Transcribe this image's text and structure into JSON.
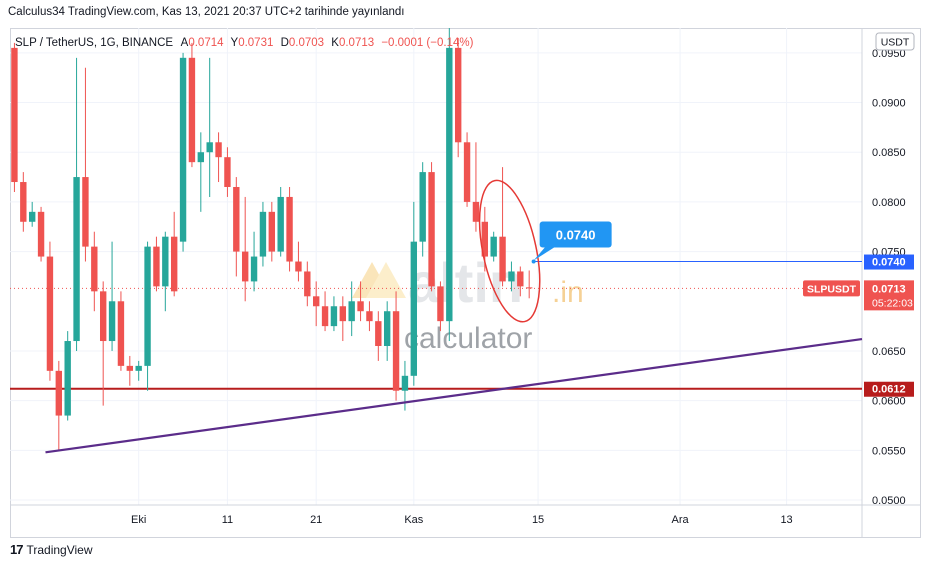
{
  "header": {
    "published": "Calculus34 TradingView.com, Kas 13, 2021 20:37 UTC+2 tarihinde yayınlandı"
  },
  "ohlc_bar": {
    "symbol": "SLP / TetherUS, 1G, BINANCE",
    "open_label": "A",
    "open": "0.0714",
    "high_label": "Y",
    "high": "0.0731",
    "low_label": "D",
    "low": "0.0703",
    "close_label": "K",
    "close": "0.0713",
    "change": "−0.0001 (−0.14%)"
  },
  "currency_button": "USDT",
  "watermark": {
    "brand": "altin",
    "suffix": ".in",
    "sub": "calculator"
  },
  "footer": {
    "logo": "17",
    "brand": "TradingView"
  },
  "colors": {
    "up": "#26a69a",
    "down": "#ef5350",
    "trendline": "#5b2c8a",
    "support": "#b71c1c",
    "target": "#2962ff",
    "callout": "#2196f3"
  },
  "chart_data": {
    "type": "candlestick",
    "symbol": "SLPUSDT",
    "ylim": [
      0.0495,
      0.0975
    ],
    "y_ticks": [
      "0.0950",
      "0.0900",
      "0.0850",
      "0.0800",
      "0.0750",
      "0.0650",
      "0.0600",
      "0.0550",
      "0.0500"
    ],
    "x_ticks": [
      {
        "label": "Eki",
        "day": 20
      },
      {
        "label": "11",
        "day": 30
      },
      {
        "label": "21",
        "day": 40
      },
      {
        "label": "Kas",
        "day": 51
      },
      {
        "label": "15",
        "day": 65
      },
      {
        "label": "Ara",
        "day": 81
      },
      {
        "label": "13",
        "day": 93
      }
    ],
    "x_range": [
      5.5,
      101.5
    ],
    "candles": [
      {
        "day": 6,
        "o": 0.0955,
        "h": 0.096,
        "l": 0.081,
        "c": 0.082
      },
      {
        "day": 7,
        "o": 0.082,
        "h": 0.083,
        "l": 0.077,
        "c": 0.078
      },
      {
        "day": 8,
        "o": 0.078,
        "h": 0.08,
        "l": 0.0775,
        "c": 0.079
      },
      {
        "day": 9,
        "o": 0.079,
        "h": 0.0795,
        "l": 0.074,
        "c": 0.0745
      },
      {
        "day": 10,
        "o": 0.0745,
        "h": 0.076,
        "l": 0.062,
        "c": 0.063
      },
      {
        "day": 11,
        "o": 0.063,
        "h": 0.064,
        "l": 0.055,
        "c": 0.0585
      },
      {
        "day": 12,
        "o": 0.0585,
        "h": 0.067,
        "l": 0.058,
        "c": 0.066
      },
      {
        "day": 13,
        "o": 0.066,
        "h": 0.0945,
        "l": 0.065,
        "c": 0.0825
      },
      {
        "day": 14,
        "o": 0.0825,
        "h": 0.0935,
        "l": 0.074,
        "c": 0.0755
      },
      {
        "day": 15,
        "o": 0.0755,
        "h": 0.077,
        "l": 0.069,
        "c": 0.071
      },
      {
        "day": 16,
        "o": 0.071,
        "h": 0.072,
        "l": 0.0595,
        "c": 0.066
      },
      {
        "day": 17,
        "o": 0.066,
        "h": 0.076,
        "l": 0.065,
        "c": 0.07
      },
      {
        "day": 18,
        "o": 0.07,
        "h": 0.071,
        "l": 0.063,
        "c": 0.0635
      },
      {
        "day": 19,
        "o": 0.0635,
        "h": 0.0645,
        "l": 0.0615,
        "c": 0.063
      },
      {
        "day": 20,
        "o": 0.063,
        "h": 0.064,
        "l": 0.062,
        "c": 0.0635
      },
      {
        "day": 21,
        "o": 0.0635,
        "h": 0.076,
        "l": 0.061,
        "c": 0.0755
      },
      {
        "day": 22,
        "o": 0.0755,
        "h": 0.0765,
        "l": 0.071,
        "c": 0.0715
      },
      {
        "day": 23,
        "o": 0.0715,
        "h": 0.077,
        "l": 0.069,
        "c": 0.0765
      },
      {
        "day": 24,
        "o": 0.0765,
        "h": 0.079,
        "l": 0.0705,
        "c": 0.071
      },
      {
        "day": 25,
        "o": 0.076,
        "h": 0.095,
        "l": 0.075,
        "c": 0.0945
      },
      {
        "day": 26,
        "o": 0.0945,
        "h": 0.096,
        "l": 0.0835,
        "c": 0.084
      },
      {
        "day": 27,
        "o": 0.084,
        "h": 0.087,
        "l": 0.079,
        "c": 0.085
      },
      {
        "day": 28,
        "o": 0.085,
        "h": 0.0945,
        "l": 0.0805,
        "c": 0.086
      },
      {
        "day": 29,
        "o": 0.086,
        "h": 0.087,
        "l": 0.082,
        "c": 0.0845
      },
      {
        "day": 30,
        "o": 0.0845,
        "h": 0.0855,
        "l": 0.0805,
        "c": 0.0815
      },
      {
        "day": 31,
        "o": 0.0815,
        "h": 0.0825,
        "l": 0.0725,
        "c": 0.075
      },
      {
        "day": 32,
        "o": 0.075,
        "h": 0.0805,
        "l": 0.07,
        "c": 0.072
      },
      {
        "day": 33,
        "o": 0.072,
        "h": 0.077,
        "l": 0.071,
        "c": 0.0745
      },
      {
        "day": 34,
        "o": 0.0745,
        "h": 0.08,
        "l": 0.0735,
        "c": 0.079
      },
      {
        "day": 35,
        "o": 0.079,
        "h": 0.08,
        "l": 0.074,
        "c": 0.075
      },
      {
        "day": 36,
        "o": 0.075,
        "h": 0.0815,
        "l": 0.0745,
        "c": 0.0805
      },
      {
        "day": 37,
        "o": 0.0805,
        "h": 0.0815,
        "l": 0.073,
        "c": 0.074
      },
      {
        "day": 38,
        "o": 0.074,
        "h": 0.076,
        "l": 0.072,
        "c": 0.073
      },
      {
        "day": 39,
        "o": 0.073,
        "h": 0.074,
        "l": 0.0695,
        "c": 0.0705
      },
      {
        "day": 40,
        "o": 0.0705,
        "h": 0.072,
        "l": 0.0675,
        "c": 0.0695
      },
      {
        "day": 41,
        "o": 0.0695,
        "h": 0.071,
        "l": 0.067,
        "c": 0.0675
      },
      {
        "day": 42,
        "o": 0.0675,
        "h": 0.0705,
        "l": 0.067,
        "c": 0.0695
      },
      {
        "day": 43,
        "o": 0.0695,
        "h": 0.0705,
        "l": 0.066,
        "c": 0.068
      },
      {
        "day": 44,
        "o": 0.068,
        "h": 0.072,
        "l": 0.0665,
        "c": 0.07
      },
      {
        "day": 45,
        "o": 0.07,
        "h": 0.072,
        "l": 0.068,
        "c": 0.069
      },
      {
        "day": 46,
        "o": 0.069,
        "h": 0.07,
        "l": 0.067,
        "c": 0.068
      },
      {
        "day": 47,
        "o": 0.068,
        "h": 0.069,
        "l": 0.064,
        "c": 0.0655
      },
      {
        "day": 48,
        "o": 0.0655,
        "h": 0.07,
        "l": 0.064,
        "c": 0.069
      },
      {
        "day": 49,
        "o": 0.069,
        "h": 0.071,
        "l": 0.06,
        "c": 0.061
      },
      {
        "day": 50,
        "o": 0.061,
        "h": 0.064,
        "l": 0.059,
        "c": 0.0625
      },
      {
        "day": 51,
        "o": 0.0625,
        "h": 0.08,
        "l": 0.0615,
        "c": 0.076
      },
      {
        "day": 52,
        "o": 0.076,
        "h": 0.084,
        "l": 0.0745,
        "c": 0.083
      },
      {
        "day": 53,
        "o": 0.083,
        "h": 0.084,
        "l": 0.071,
        "c": 0.0715
      },
      {
        "day": 54,
        "o": 0.0715,
        "h": 0.072,
        "l": 0.067,
        "c": 0.068
      },
      {
        "day": 55,
        "o": 0.068,
        "h": 0.0975,
        "l": 0.066,
        "c": 0.0955
      },
      {
        "day": 56,
        "o": 0.0955,
        "h": 0.0965,
        "l": 0.0845,
        "c": 0.086
      },
      {
        "day": 57,
        "o": 0.086,
        "h": 0.087,
        "l": 0.0795,
        "c": 0.08
      },
      {
        "day": 58,
        "o": 0.08,
        "h": 0.086,
        "l": 0.077,
        "c": 0.078
      },
      {
        "day": 59,
        "o": 0.078,
        "h": 0.0795,
        "l": 0.073,
        "c": 0.0745
      },
      {
        "day": 60,
        "o": 0.0745,
        "h": 0.077,
        "l": 0.074,
        "c": 0.0765
      },
      {
        "day": 61,
        "o": 0.0765,
        "h": 0.0835,
        "l": 0.0715,
        "c": 0.072
      },
      {
        "day": 62,
        "o": 0.072,
        "h": 0.074,
        "l": 0.071,
        "c": 0.073
      },
      {
        "day": 63,
        "o": 0.073,
        "h": 0.0735,
        "l": 0.0705,
        "c": 0.0715
      },
      {
        "day": 64,
        "o": 0.0714,
        "h": 0.0731,
        "l": 0.0703,
        "c": 0.0713
      }
    ],
    "annotations": {
      "callout": "0.0740",
      "target_label": "0.0740",
      "current_symbol": "SLPUSDT",
      "current_price": "0.0713",
      "countdown": "05:22:03",
      "support_label": "0.0612",
      "target_value": 0.074,
      "current_value": 0.0713,
      "support_value": 0.0612,
      "trendline": [
        {
          "day": 9.5,
          "value": 0.0548
        },
        {
          "day": 101.5,
          "value": 0.0662
        }
      ],
      "ellipse": {
        "day_from": 58.8,
        "day_to": 64.8,
        "value_from": 0.0678,
        "value_to": 0.0823
      },
      "target_start_day": 64.5
    }
  }
}
